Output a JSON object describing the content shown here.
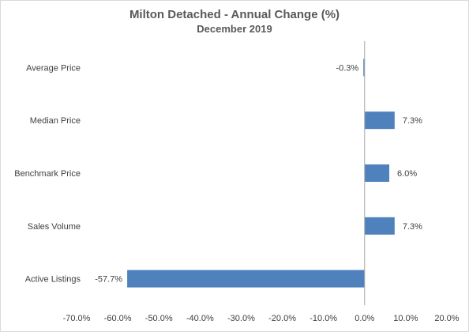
{
  "chart_data": {
    "type": "bar",
    "orientation": "horizontal",
    "title": "Milton Detached - Annual Change (%)",
    "subtitle": "December 2019",
    "categories": [
      "Average Price",
      "Median Price",
      "Benchmark Price",
      "Sales Volume",
      "Active Listings"
    ],
    "values": [
      -0.3,
      7.3,
      6.0,
      7.3,
      -57.7
    ],
    "data_labels": [
      "-0.3%",
      "7.3%",
      "6.0%",
      "7.3%",
      "-57.7%"
    ],
    "xlim": [
      -70,
      20
    ],
    "x_ticks": [
      -70,
      -60,
      -50,
      -40,
      -30,
      -20,
      -10,
      0,
      10,
      20
    ],
    "x_tick_labels": [
      "-70.0%",
      "-60.0%",
      "-50.0%",
      "-40.0%",
      "-30.0%",
      "-20.0%",
      "-10.0%",
      "0.0%",
      "10.0%",
      "20.0%"
    ],
    "grid": false,
    "legend": "none",
    "bar_color": "#4f81bd"
  }
}
